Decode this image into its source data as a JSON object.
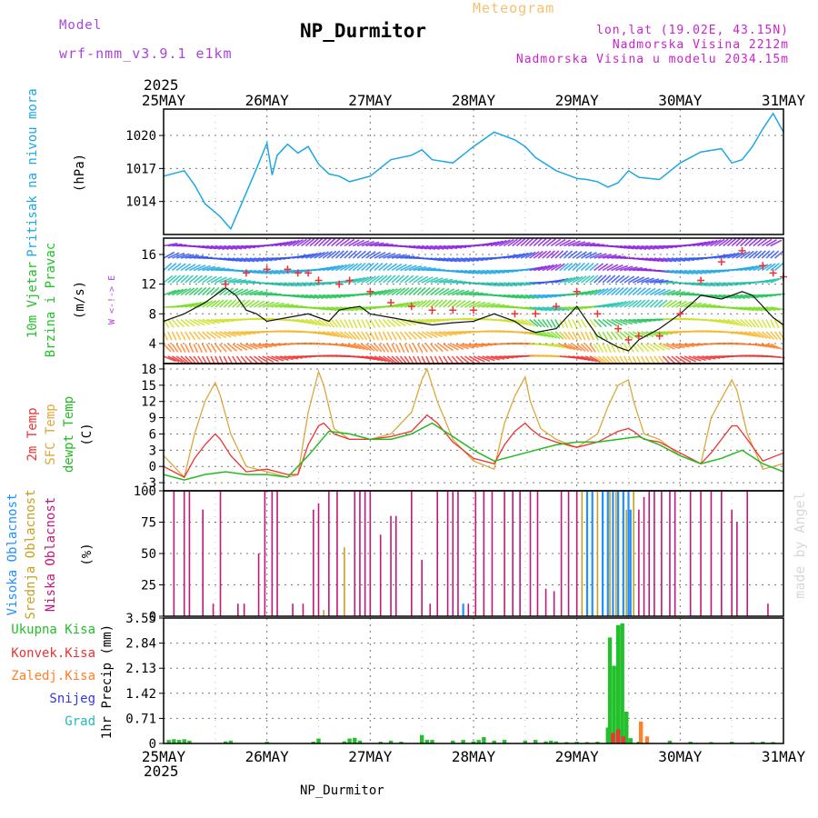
{
  "header": {
    "model_label": "Model",
    "model_name": "wrf-nmm_v3.9.1 e1km",
    "title": "NP_Durmitor",
    "meteogram_label": "Meteogram",
    "lonlat": "lon,lat (19.02E, 43.15N)",
    "altitude": "Nadmorska Visina 2212m",
    "model_altitude": "Nadmorska Visina u modelu 2034.15m",
    "year": "2025",
    "bottom_title": "NP_Durmitor",
    "watermark": "made by Angel"
  },
  "colors": {
    "pressure": "#1ea7e6",
    "temp2m": "#ee3333",
    "sfc": "#dca73a",
    "dewpt": "#22bb22",
    "wind_speed": "#111111",
    "gust": "#ee3333",
    "high_cloud": "#1e90ff",
    "mid_cloud": "#c8a020",
    "low_cloud": "#c0187a",
    "precip_total": "#22c02a",
    "precip_conv": "#ee3333",
    "precip_frz": "#ff7f2a",
    "precip_snow": "#3333ee",
    "precip_grad": "#22bbbb",
    "label_magenta": "#cc22cc",
    "label_purple": "#aa44dd",
    "title_orange": "#f5c070",
    "grid": "#777777"
  },
  "chart_data": [
    {
      "type": "line",
      "panel": "pressure",
      "title": "Pritisak na nivou mora",
      "ylabel": "(hPa)",
      "x_tick_labels": [
        "25MAY",
        "26MAY",
        "27MAY",
        "28MAY",
        "29MAY",
        "30MAY",
        "31MAY"
      ],
      "x_range_days": [
        0,
        6
      ],
      "ylim": [
        1011,
        1022.4
      ],
      "yticks": [
        1014,
        1017,
        1020
      ],
      "series": [
        {
          "x": [
            0,
            0.2,
            0.3,
            0.4,
            0.55,
            0.65,
            0.75,
            0.9,
            1.0,
            1.05,
            1.1,
            1.2,
            1.3,
            1.4,
            1.5,
            1.6,
            1.7,
            1.8,
            2.0,
            2.2,
            2.4,
            2.5,
            2.6,
            2.8,
            3.0,
            3.2,
            3.4,
            3.5,
            3.6,
            3.8,
            4.0,
            4.1,
            4.2,
            4.3,
            4.4,
            4.5,
            4.6,
            4.8,
            5.0,
            5.2,
            5.4,
            5.5,
            5.6,
            5.7,
            5.8,
            5.9,
            6.0
          ],
          "values": [
            1016.3,
            1016.8,
            1015.5,
            1013.8,
            1012.6,
            1011.5,
            1013.7,
            1017.0,
            1019.3,
            1016.4,
            1018.2,
            1019.2,
            1018.4,
            1019.0,
            1017.4,
            1016.5,
            1016.3,
            1015.8,
            1016.3,
            1017.8,
            1018.2,
            1018.7,
            1017.8,
            1017.5,
            1019.0,
            1020.3,
            1019.6,
            1019.0,
            1018.0,
            1016.8,
            1016.1,
            1016.0,
            1015.8,
            1015.3,
            1015.7,
            1016.8,
            1016.2,
            1016.0,
            1017.5,
            1018.5,
            1018.8,
            1017.5,
            1017.8,
            1019.0,
            1020.6,
            1022.0,
            1020.3
          ]
        }
      ]
    },
    {
      "type": "line",
      "panel": "wind",
      "title": "10m Vjetar",
      "subtitle": "Brzina i Pravac",
      "ylabel": "(m/s)",
      "direction_legend": "W <-!-> E",
      "ylim": [
        1.3,
        18.2
      ],
      "yticks": [
        4,
        8,
        12,
        16
      ],
      "series": [
        {
          "x": [
            0,
            0.2,
            0.4,
            0.5,
            0.6,
            0.7,
            0.8,
            0.9,
            1.0,
            1.2,
            1.4,
            1.6,
            1.7,
            1.8,
            1.9,
            2.0,
            2.2,
            2.4,
            2.6,
            2.8,
            3.0,
            3.2,
            3.4,
            3.5,
            3.6,
            3.8,
            4.0,
            4.2,
            4.4,
            4.5,
            4.6,
            4.8,
            5.0,
            5.2,
            5.4,
            5.5,
            5.6,
            5.7,
            5.8,
            5.9,
            6.0
          ],
          "values": [
            7,
            8,
            9.5,
            10.5,
            11.5,
            10.5,
            8.5,
            8.0,
            7.0,
            7.5,
            8.0,
            7.0,
            8.5,
            8.8,
            9.0,
            8.0,
            7.5,
            7.0,
            6.5,
            6.8,
            7.0,
            8.0,
            7.0,
            6.0,
            5.5,
            6.0,
            9.0,
            5.0,
            3.5,
            3.0,
            4.5,
            6.0,
            8.0,
            10.5,
            10.0,
            10.5,
            11.0,
            10.5,
            9.0,
            7.5,
            6.5
          ]
        },
        {
          "x": [
            0.6,
            0.8,
            1.0,
            1.2,
            1.3,
            1.4,
            1.5,
            1.7,
            1.8,
            2.0,
            2.2,
            2.4,
            2.6,
            2.8,
            3.0,
            3.4,
            3.6,
            3.8,
            4.0,
            4.2,
            4.4,
            4.5,
            4.6,
            4.8,
            5.0,
            5.2,
            5.4,
            5.6,
            5.8,
            5.9,
            6.0
          ],
          "values": [
            12,
            13.5,
            14.0,
            14.0,
            13.5,
            13.5,
            12.5,
            12.0,
            12.5,
            11.0,
            9.5,
            9.0,
            8.5,
            8.5,
            8.5,
            8.0,
            8.0,
            9.0,
            11.0,
            8.0,
            6.0,
            4.5,
            5.0,
            5.0,
            8.0,
            12.5,
            15.0,
            16.5,
            14.5,
            13.5,
            13.0
          ]
        }
      ]
    },
    {
      "type": "line",
      "panel": "temperature",
      "ylabel": "(C)",
      "ylim": [
        -4.5,
        19
      ],
      "yticks": [
        -3,
        0,
        3,
        6,
        9,
        12,
        15,
        18
      ],
      "series": [
        {
          "name": "2m Temp",
          "x": [
            0,
            0.2,
            0.3,
            0.4,
            0.5,
            0.55,
            0.65,
            0.8,
            1.0,
            1.2,
            1.3,
            1.4,
            1.5,
            1.55,
            1.65,
            1.8,
            2.0,
            2.2,
            2.4,
            2.5,
            2.55,
            2.65,
            2.8,
            3.0,
            3.2,
            3.3,
            3.4,
            3.5,
            3.55,
            3.65,
            3.8,
            4.0,
            4.2,
            4.3,
            4.4,
            4.5,
            4.55,
            4.65,
            4.8,
            5.0,
            5.2,
            5.3,
            5.4,
            5.5,
            5.55,
            5.65,
            5.8,
            6.0
          ],
          "values": [
            0,
            -2,
            1.5,
            4,
            6,
            5,
            2,
            -1,
            -0.5,
            -1.5,
            -1.5,
            4,
            7.5,
            8,
            6,
            5,
            5,
            5.5,
            6.5,
            8.5,
            9.5,
            8,
            4.5,
            1.5,
            0.5,
            4,
            6.5,
            8,
            7,
            5.5,
            4.5,
            3.5,
            4.5,
            5.5,
            6.5,
            7.0,
            6.5,
            5,
            4.5,
            2.5,
            0.5,
            2.5,
            5,
            7.5,
            7.5,
            5,
            1,
            2.5
          ]
        },
        {
          "name": "SFC Temp",
          "x": [
            0,
            0.2,
            0.3,
            0.4,
            0.5,
            0.55,
            0.65,
            0.8,
            1.0,
            1.2,
            1.3,
            1.4,
            1.5,
            1.55,
            1.65,
            1.8,
            2.0,
            2.2,
            2.4,
            2.5,
            2.55,
            2.65,
            2.8,
            3.0,
            3.2,
            3.3,
            3.4,
            3.5,
            3.55,
            3.65,
            3.8,
            4.0,
            4.2,
            4.3,
            4.4,
            4.5,
            4.55,
            4.65,
            4.8,
            5.0,
            5.2,
            5.3,
            5.4,
            5.5,
            5.55,
            5.65,
            5.8,
            6.0
          ],
          "values": [
            2,
            -2,
            6,
            12,
            15.5,
            13,
            6,
            0,
            -1,
            -2,
            -1.5,
            10,
            17.5,
            15,
            7,
            5,
            5,
            6,
            10,
            16,
            18,
            12,
            5,
            1,
            -0.5,
            8,
            13,
            16.5,
            12,
            7,
            5,
            3.5,
            6,
            11,
            15,
            16,
            12,
            6,
            5,
            2,
            0.5,
            9,
            12.5,
            16,
            14,
            6,
            -0.5,
            0.5
          ]
        },
        {
          "name": "dewpt Temp",
          "x": [
            0,
            0.2,
            0.4,
            0.6,
            0.8,
            1.0,
            1.2,
            1.4,
            1.6,
            1.8,
            2.0,
            2.2,
            2.4,
            2.6,
            2.8,
            3.0,
            3.2,
            3.4,
            3.6,
            3.8,
            4.0,
            4.2,
            4.4,
            4.6,
            4.8,
            5.0,
            5.2,
            5.4,
            5.6,
            5.8,
            6.0
          ],
          "values": [
            -1.5,
            -2.5,
            -1.5,
            -1,
            -1.5,
            -1.5,
            -2,
            2,
            6.5,
            6,
            5,
            5,
            6,
            8,
            5.5,
            3,
            1,
            2,
            3,
            4,
            4.5,
            4.5,
            5,
            5.5,
            4,
            2,
            0.5,
            1.5,
            3,
            0.5,
            -1
          ]
        }
      ]
    },
    {
      "type": "bar",
      "panel": "clouds",
      "ylabel": "(%)",
      "ylim": [
        0,
        100
      ],
      "yticks": [
        0,
        25,
        50,
        75,
        100
      ],
      "series": [
        {
          "name": "Visoka Oblacnost",
          "x": [
            2.9,
            4.1,
            4.15,
            4.25,
            4.3,
            4.35,
            4.4,
            4.45,
            4.5,
            4.52
          ],
          "values": [
            10,
            100,
            100,
            100,
            100,
            100,
            100,
            100,
            100,
            85
          ]
        },
        {
          "name": "Srednja Oblacnost",
          "x": [
            1.55,
            1.75,
            4.05,
            4.1,
            4.2,
            4.25,
            4.32,
            4.38,
            4.48,
            4.55
          ],
          "values": [
            5,
            55,
            100,
            100,
            100,
            100,
            100,
            100,
            85,
            100
          ]
        },
        {
          "name": "Niska Oblacnost",
          "x": [
            0.1,
            0.2,
            0.25,
            0.38,
            0.48,
            0.55,
            0.72,
            0.78,
            0.92,
            0.98,
            1.05,
            1.1,
            1.25,
            1.35,
            1.45,
            1.5,
            1.6,
            1.68,
            1.85,
            1.9,
            1.95,
            2.0,
            2.1,
            2.2,
            2.25,
            2.4,
            2.5,
            2.58,
            2.65,
            2.75,
            2.8,
            2.85,
            2.95,
            3.02,
            3.1,
            3.18,
            3.3,
            3.38,
            3.45,
            3.55,
            3.62,
            3.7,
            3.78,
            3.85,
            3.92,
            4.0,
            4.6,
            4.65,
            4.7,
            4.75,
            4.82,
            4.9,
            4.95,
            5.1,
            5.2,
            5.3,
            5.4,
            5.5,
            5.55,
            5.65,
            5.85
          ],
          "values": [
            100,
            100,
            100,
            85,
            10,
            100,
            10,
            10,
            50,
            100,
            100,
            100,
            10,
            10,
            85,
            90,
            100,
            100,
            100,
            100,
            100,
            100,
            65,
            80,
            80,
            100,
            45,
            10,
            100,
            100,
            100,
            100,
            10,
            100,
            100,
            100,
            100,
            100,
            100,
            100,
            100,
            22,
            20,
            100,
            100,
            100,
            85,
            95,
            100,
            100,
            100,
            100,
            100,
            100,
            100,
            100,
            100,
            85,
            75,
            100,
            10
          ]
        }
      ]
    },
    {
      "type": "bar",
      "panel": "precipitation",
      "ylabel": "1hr Precip (mm)",
      "ylim": [
        0,
        3.55
      ],
      "yticks": [
        0,
        0.71,
        1.42,
        2.13,
        2.84,
        3.55
      ],
      "series": [
        {
          "name": "Ukupna Kisa",
          "x": [
            0.05,
            0.1,
            0.15,
            0.2,
            0.25,
            0.6,
            0.65,
            1.0,
            1.45,
            1.5,
            1.75,
            1.8,
            1.85,
            1.9,
            2.1,
            2.2,
            2.3,
            2.5,
            2.55,
            2.6,
            2.8,
            2.9,
            3.0,
            3.05,
            3.1,
            3.2,
            3.3,
            3.5,
            3.6,
            3.7,
            3.75,
            3.8,
            3.9,
            4.0,
            4.1,
            4.2,
            4.3,
            4.32,
            4.36,
            4.4,
            4.44,
            4.48,
            4.52,
            4.6,
            4.9,
            5.1,
            5.3,
            5.5,
            5.7,
            5.8,
            5.9
          ],
          "values": [
            0.1,
            0.12,
            0.1,
            0.12,
            0.08,
            0.06,
            0.08,
            0.05,
            0.05,
            0.14,
            0.06,
            0.14,
            0.16,
            0.08,
            0.05,
            0.08,
            0.05,
            0.24,
            0.1,
            0.1,
            0.08,
            0.1,
            0.06,
            0.1,
            0.18,
            0.08,
            0.1,
            0.08,
            0.1,
            0.06,
            0.08,
            0.06,
            0.04,
            0.05,
            0.04,
            0.05,
            0.45,
            3.0,
            2.2,
            3.35,
            3.4,
            0.9,
            0.15,
            0.05,
            0.08,
            0.05,
            0.04,
            0.05,
            0.04,
            0.05,
            0.04
          ]
        },
        {
          "name": "Konvek.Kisa",
          "x": [
            4.35,
            4.4,
            4.45
          ],
          "values": [
            0.3,
            0.4,
            0.2
          ]
        },
        {
          "name": "Zaledj.Kisa",
          "x": [
            4.62,
            4.68
          ],
          "values": [
            0.62,
            0.2
          ]
        },
        {
          "name": "Snijeg",
          "x": [],
          "values": []
        },
        {
          "name": "Grad",
          "x": [],
          "values": []
        }
      ]
    }
  ]
}
